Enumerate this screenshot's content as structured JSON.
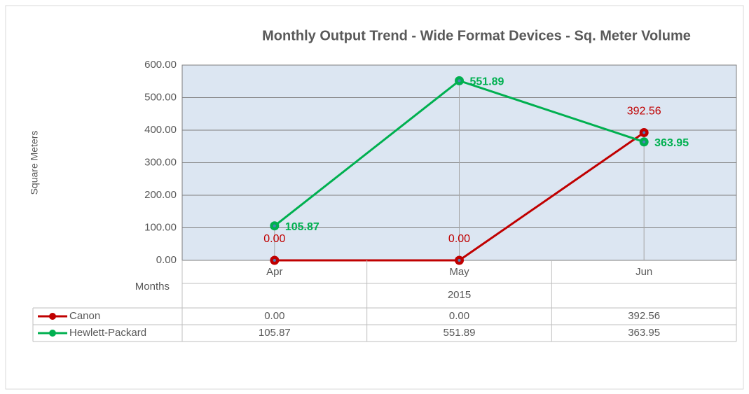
{
  "chart_data": {
    "type": "line",
    "title": "Monthly Output Trend - Wide Format Devices - Sq. Meter Volume",
    "y_axis_label": "Square Meters",
    "x_axis_label": "Months",
    "category_group": "2015",
    "categories": [
      "Apr",
      "May",
      "Jun"
    ],
    "series": [
      {
        "name": "Canon",
        "color": "#c00000",
        "values": [
          0,
          0,
          392.56
        ],
        "value_labels": [
          "0.00",
          "0.00",
          "392.56"
        ]
      },
      {
        "name": "Hewlett-Packard",
        "color": "#00b050",
        "values": [
          105.87,
          551.89,
          363.95
        ]
      }
    ],
    "ylim": [
      0,
      600
    ],
    "yticks": [
      {
        "value": 0,
        "label": "0.00"
      },
      {
        "value": 100,
        "label": "100.00"
      },
      {
        "value": 200,
        "label": "200.00"
      },
      {
        "value": 300,
        "label": "300.00"
      },
      {
        "value": 400,
        "label": "400.00"
      },
      {
        "value": 500,
        "label": "500.00"
      },
      {
        "value": 600,
        "label": "600.00"
      }
    ],
    "grid": true,
    "data_table": true
  }
}
